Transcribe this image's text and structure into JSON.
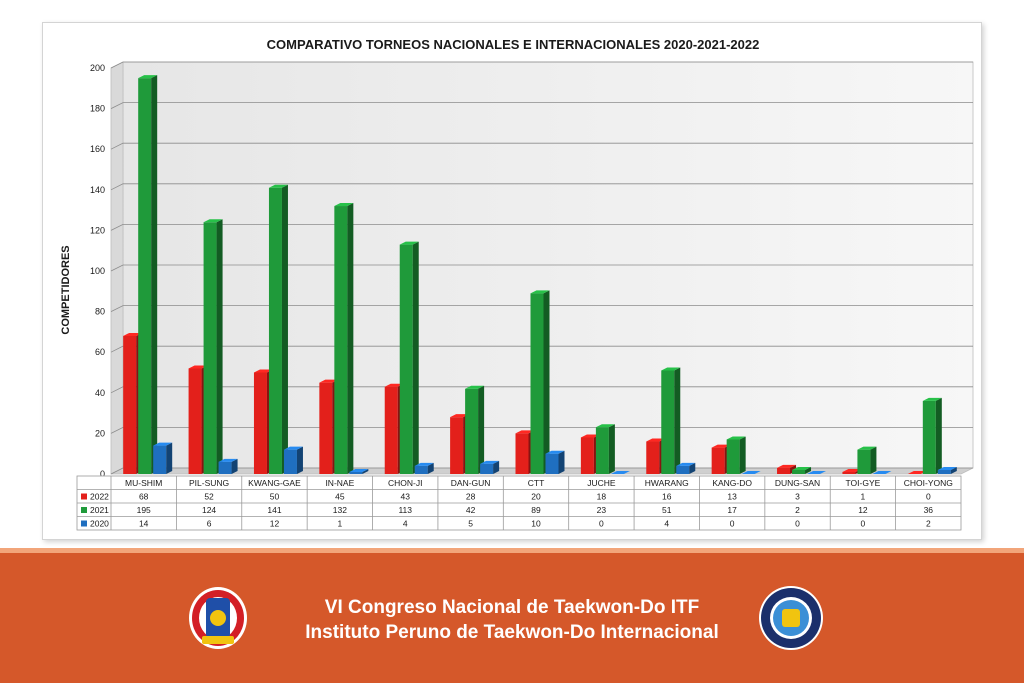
{
  "chart_data": {
    "type": "bar",
    "title": "COMPARATIVO TORNEOS NACIONALES E INTERNACIONALES 2020-2021-2022",
    "ylabel": "COMPETIDORES",
    "xlabel": "",
    "ylim": [
      0,
      200
    ],
    "yticks": [
      0,
      20,
      40,
      60,
      80,
      100,
      120,
      140,
      160,
      180,
      200
    ],
    "grid": true,
    "legend_placement": "data-table-left",
    "categories": [
      "MU-SHIM",
      "PIL-SUNG",
      "KWANG-GAE",
      "IN-NAE",
      "CHON-JI",
      "DAN-GUN",
      "CTT",
      "JUCHE",
      "HWARANG",
      "KANG-DO",
      "DUNG-SAN",
      "TOI-GYE",
      "CHOI-YONG"
    ],
    "series": [
      {
        "name": "2022",
        "color": "#e3201b",
        "values": [
          68,
          52,
          50,
          45,
          43,
          28,
          20,
          18,
          16,
          13,
          3,
          1,
          0
        ]
      },
      {
        "name": "2021",
        "color": "#1f9a3a",
        "values": [
          195,
          124,
          141,
          132,
          113,
          42,
          89,
          23,
          51,
          17,
          2,
          12,
          36
        ]
      },
      {
        "name": "2020",
        "color": "#1f6fc0",
        "values": [
          14,
          6,
          12,
          1,
          4,
          5,
          10,
          0,
          4,
          0,
          0,
          0,
          2
        ]
      }
    ]
  },
  "footer": {
    "line1": "VI Congreso Nacional de Taekwon-Do ITF",
    "line2": "Instituto Peruno de Taekwon-Do Internacional",
    "background": "#d5582a"
  },
  "logos": {
    "left": {
      "icon": "ipt-logo-icon"
    },
    "right": {
      "icon": "itf-logo-icon"
    }
  }
}
